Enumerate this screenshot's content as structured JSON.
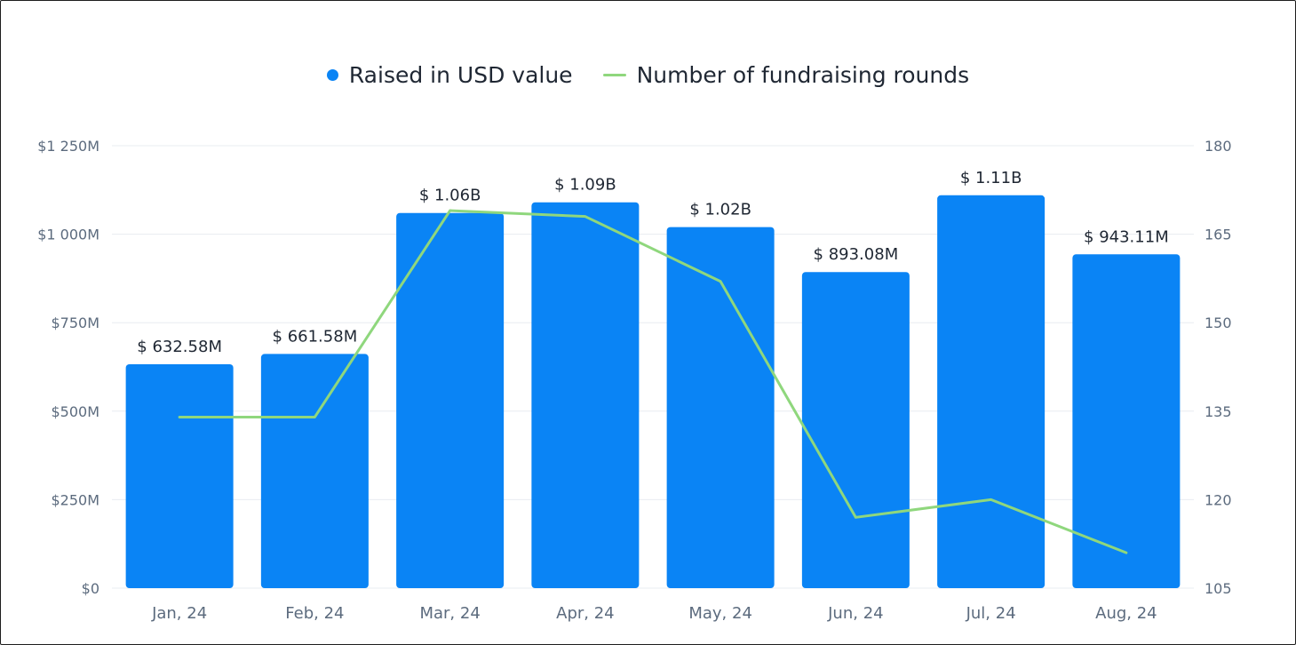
{
  "legend": {
    "bars_label": "Raised in USD value",
    "line_label": "Number of fundraising rounds"
  },
  "colors": {
    "bar": "#0a84f5",
    "line": "#8fd77d",
    "grid": "#e8ecf1",
    "tick": "#5c6b7e",
    "label": "#1f2733"
  },
  "chart_data": {
    "type": "bar",
    "title": "",
    "xlabel": "",
    "ylabel": "",
    "categories": [
      "Jan, 24",
      "Feb, 24",
      "Mar, 24",
      "Apr, 24",
      "May, 24",
      "Jun, 24",
      "Jul, 24",
      "Aug, 24"
    ],
    "left_axis": {
      "ticks": [
        0,
        250,
        500,
        750,
        1000,
        1250
      ],
      "tick_labels": [
        "$0",
        "$250M",
        "$500M",
        "$750M",
        "$1 000M",
        "$1 250M"
      ],
      "ylim": [
        0,
        1250
      ],
      "unit": "USD millions"
    },
    "right_axis": {
      "ticks": [
        105,
        120,
        135,
        150,
        165,
        180
      ],
      "tick_labels": [
        "105",
        "120",
        "135",
        "150",
        "165",
        "180"
      ],
      "ylim": [
        105,
        180
      ]
    },
    "grid": true,
    "legend_position": "top-center",
    "series": [
      {
        "name": "Raised in USD value",
        "type": "bar",
        "axis": "left",
        "values": [
          632.58,
          661.58,
          1060,
          1090,
          1020,
          893.08,
          1110,
          943.11
        ],
        "data_labels": [
          "$ 632.58M",
          "$ 661.58M",
          "$ 1.06B",
          "$ 1.09B",
          "$ 1.02B",
          "$ 893.08M",
          "$ 1.11B",
          "$ 943.11M"
        ]
      },
      {
        "name": "Number of fundraising rounds",
        "type": "line",
        "axis": "right",
        "values": [
          134,
          134,
          169,
          168,
          157,
          117,
          120,
          111
        ]
      }
    ]
  }
}
